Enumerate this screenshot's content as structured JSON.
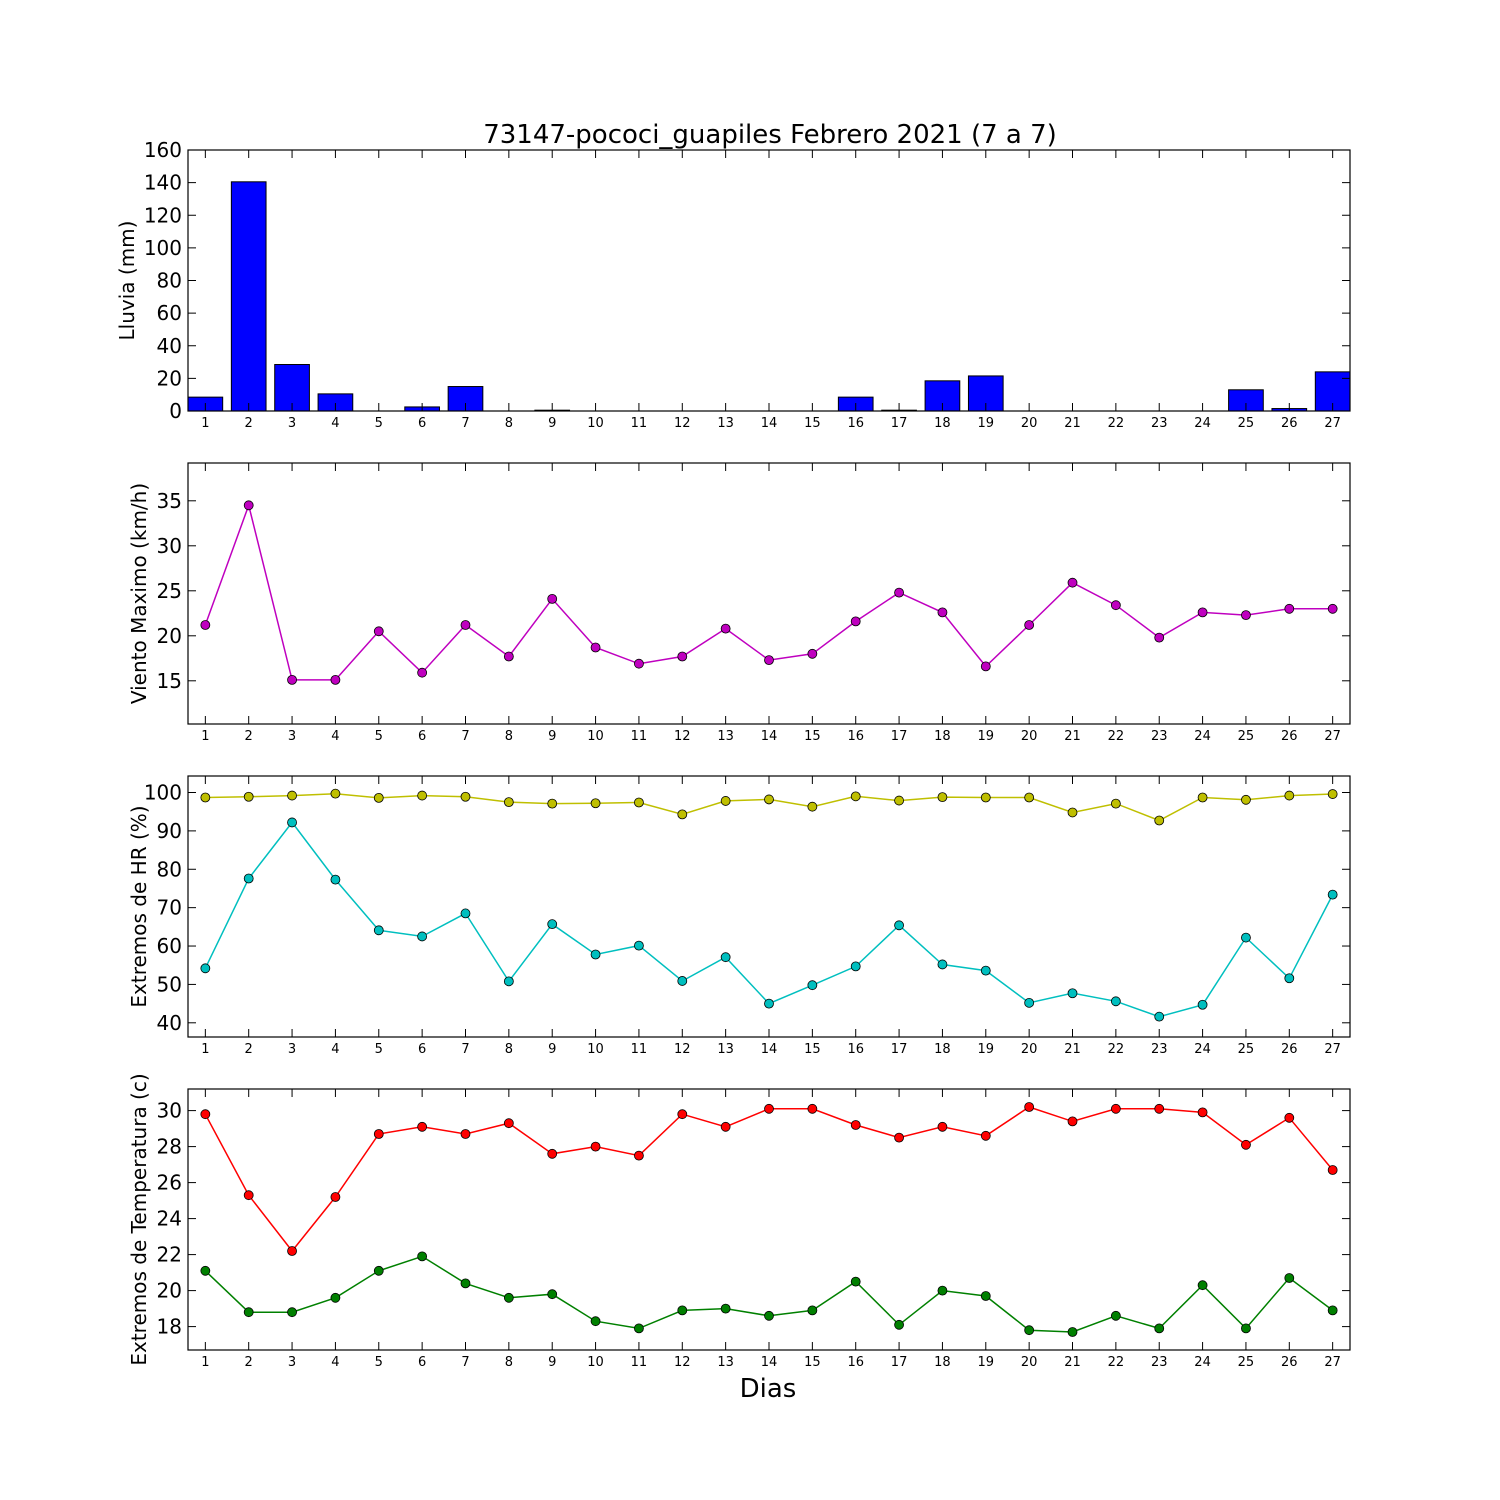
{
  "title": "73147-pococi_guapiles Febrero 2021  (7 a 7)",
  "xlabel": "Dias",
  "colors": {
    "rain_bar": "#0000ff",
    "wind": "#bf00bf",
    "hr_max": "#bfbf00",
    "hr_min": "#00bfbf",
    "temp_max": "#ff0000",
    "temp_min": "#008000"
  },
  "chart_data": [
    {
      "type": "bar",
      "ylabel": "Lluvia (mm)",
      "ylim": [
        0,
        160
      ],
      "yticks": [
        0,
        20,
        40,
        60,
        80,
        100,
        120,
        140,
        160
      ],
      "categories": [
        1,
        2,
        3,
        4,
        5,
        6,
        7,
        8,
        9,
        10,
        11,
        12,
        13,
        14,
        15,
        16,
        17,
        18,
        19,
        20,
        21,
        22,
        23,
        24,
        25,
        26,
        27
      ],
      "values": [
        8.5,
        140.5,
        28.5,
        10.5,
        0,
        2.5,
        15,
        0,
        0.5,
        0,
        0,
        0,
        0,
        0,
        0,
        8.5,
        0.5,
        18.5,
        21.5,
        0,
        0,
        0,
        0,
        0,
        13,
        1.5,
        24
      ]
    },
    {
      "type": "line",
      "ylabel": "Viento Maximo (km/h)",
      "ylim": [
        10.2,
        39.2
      ],
      "yticks": [
        15,
        20,
        25,
        30,
        35
      ],
      "x": [
        1,
        2,
        3,
        4,
        5,
        6,
        7,
        8,
        9,
        10,
        11,
        12,
        13,
        14,
        15,
        16,
        17,
        18,
        19,
        20,
        21,
        22,
        23,
        24,
        25,
        26,
        27
      ],
      "series": [
        {
          "color_key": "wind",
          "values": [
            21.2,
            34.5,
            15.1,
            15.1,
            20.5,
            15.9,
            21.2,
            17.7,
            24.1,
            18.7,
            16.9,
            17.7,
            20.8,
            17.3,
            18.0,
            21.6,
            24.8,
            22.6,
            16.6,
            21.2,
            25.9,
            23.4,
            19.8,
            22.6,
            22.3,
            23.0,
            23.0
          ]
        }
      ]
    },
    {
      "type": "line",
      "ylabel": "Extremos de HR (%)",
      "ylim": [
        36.3,
        104.3
      ],
      "yticks": [
        40,
        50,
        60,
        70,
        80,
        90,
        100
      ],
      "x": [
        1,
        2,
        3,
        4,
        5,
        6,
        7,
        8,
        9,
        10,
        11,
        12,
        13,
        14,
        15,
        16,
        17,
        18,
        19,
        20,
        21,
        22,
        23,
        24,
        25,
        26,
        27
      ],
      "series": [
        {
          "color_key": "hr_max",
          "values": [
            98.7,
            98.9,
            99.2,
            99.7,
            98.6,
            99.2,
            98.9,
            97.5,
            97.1,
            97.2,
            97.4,
            94.3,
            97.8,
            98.2,
            96.3,
            99.0,
            97.9,
            98.8,
            98.7,
            98.7,
            94.8,
            97.1,
            92.7,
            98.7,
            98.1,
            99.2,
            99.6
          ]
        },
        {
          "color_key": "hr_min",
          "values": [
            54.2,
            77.6,
            92.2,
            77.3,
            64.1,
            62.5,
            68.5,
            50.8,
            65.7,
            57.8,
            60.1,
            50.9,
            57.1,
            45.0,
            49.8,
            54.7,
            65.4,
            55.2,
            53.6,
            45.2,
            47.7,
            45.6,
            41.6,
            44.7,
            62.2,
            51.6,
            73.4
          ]
        }
      ]
    },
    {
      "type": "line",
      "ylabel": "Extremos de Temperatura (c)",
      "ylim": [
        16.7,
        31.2
      ],
      "yticks": [
        18,
        20,
        22,
        24,
        26,
        28,
        30
      ],
      "x": [
        1,
        2,
        3,
        4,
        5,
        6,
        7,
        8,
        9,
        10,
        11,
        12,
        13,
        14,
        15,
        16,
        17,
        18,
        19,
        20,
        21,
        22,
        23,
        24,
        25,
        26,
        27
      ],
      "series": [
        {
          "color_key": "temp_max",
          "values": [
            29.8,
            25.3,
            22.2,
            25.2,
            28.7,
            29.1,
            28.7,
            29.3,
            27.6,
            28.0,
            27.5,
            29.8,
            29.1,
            30.1,
            30.1,
            29.2,
            28.5,
            29.1,
            28.6,
            30.2,
            29.4,
            30.1,
            30.1,
            29.9,
            28.1,
            29.6,
            26.7
          ]
        },
        {
          "color_key": "temp_min",
          "values": [
            21.1,
            18.8,
            18.8,
            19.6,
            21.1,
            21.9,
            20.4,
            19.6,
            19.8,
            18.3,
            17.9,
            18.9,
            19.0,
            18.6,
            18.9,
            20.5,
            18.1,
            20.0,
            19.7,
            17.8,
            17.7,
            18.6,
            17.9,
            20.3,
            17.9,
            20.7,
            18.9
          ]
        }
      ]
    }
  ]
}
